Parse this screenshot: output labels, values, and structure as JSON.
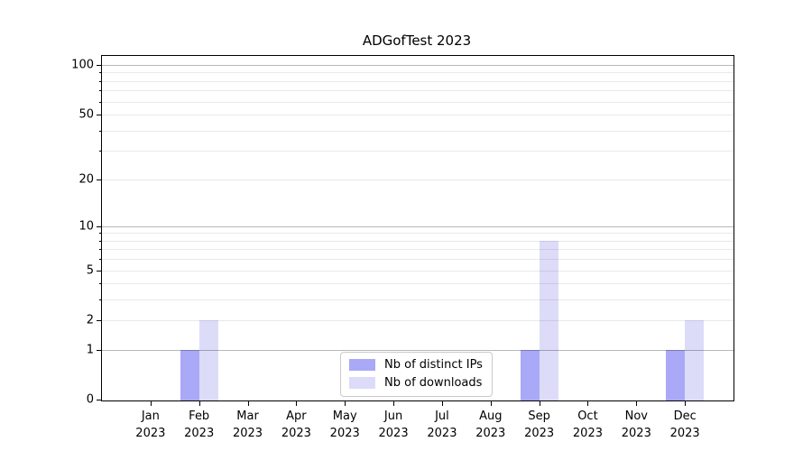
{
  "chart_data": {
    "type": "bar",
    "title": "ADGofTest 2023",
    "categories": [
      "Jan 2023",
      "Feb 2023",
      "Mar 2023",
      "Apr 2023",
      "May 2023",
      "Jun 2023",
      "Jul 2023",
      "Aug 2023",
      "Sep 2023",
      "Oct 2023",
      "Nov 2023",
      "Dec 2023"
    ],
    "series": [
      {
        "name": "Nb of distinct IPs",
        "color": "#a9a9f7",
        "values": [
          0,
          1,
          0,
          0,
          0,
          0,
          0,
          0,
          1,
          0,
          0,
          1
        ]
      },
      {
        "name": "Nb of downloads",
        "color": "#dcdcf9",
        "values": [
          0,
          2,
          0,
          0,
          0,
          0,
          0,
          0,
          8,
          0,
          0,
          2
        ]
      }
    ],
    "xlabel": "",
    "ylabel": "",
    "yscale": "log1p",
    "ylim": [
      0,
      113.3
    ],
    "y_tick_labels": [
      0,
      1,
      2,
      5,
      10,
      20,
      50,
      100
    ],
    "y_major_gridlines": [
      1,
      10,
      100
    ],
    "y_minor_gridlines": [
      2,
      3,
      4,
      5,
      6,
      7,
      8,
      9,
      20,
      30,
      40,
      50,
      60,
      70,
      80,
      90
    ],
    "grid": "horizontal",
    "legend_position": "lower center",
    "colors": {
      "axis": "#000000",
      "major_grid": "#b7b7b7",
      "minor_grid": "#e8e8e8",
      "background": "#ffffff"
    }
  }
}
